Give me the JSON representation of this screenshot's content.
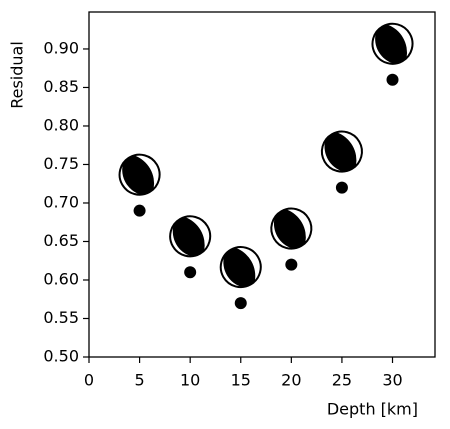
{
  "chart_data": {
    "type": "scatter",
    "x_label": "Depth [km]",
    "y_label": "Residual",
    "x": [
      5,
      10,
      15,
      20,
      25,
      30
    ],
    "series": [
      {
        "color": "#000000",
        "values": [
          0.69,
          0.61,
          0.57,
          0.62,
          0.72,
          0.86
        ]
      }
    ],
    "xlim": [
      0,
      34.2
    ],
    "ylim": [
      0.5,
      0.948
    ],
    "xticks": [
      0,
      5,
      10,
      15,
      20,
      25,
      30
    ],
    "yticks": [
      {
        "value": 0.5,
        "label": "0.50"
      },
      0.55,
      {
        "value": 0.6,
        "label": "0.60"
      },
      0.65,
      {
        "value": 0.7,
        "label": "0.70"
      },
      0.75,
      {
        "value": 0.8,
        "label": "0.80"
      },
      0.85,
      {
        "value": 0.9,
        "label": "0.90"
      }
    ],
    "grid": false
  }
}
